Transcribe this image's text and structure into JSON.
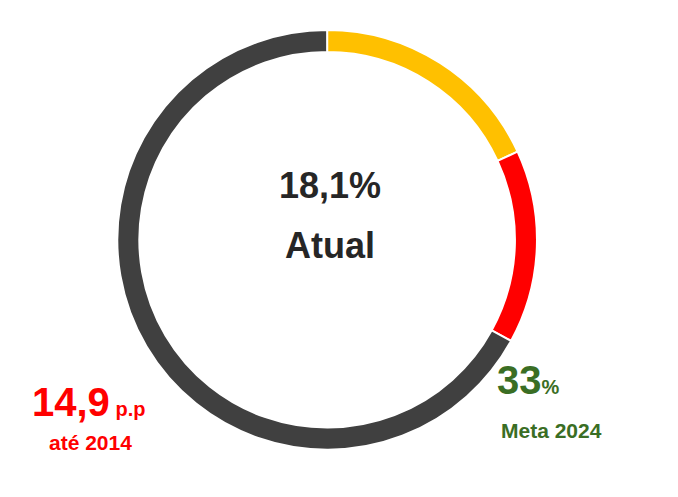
{
  "chart_data": {
    "type": "pie",
    "values": [
      18.1,
      14.9,
      67
    ],
    "colors": [
      "#FFC000",
      "#FF0000",
      "#404040"
    ],
    "data_labels": false,
    "annotations": [
      {
        "text": "18,1%",
        "color": "#262626"
      },
      {
        "text": "Atual",
        "color": "#262626"
      },
      {
        "text": "14,9 p.p",
        "color": "#FF0000"
      },
      {
        "text": "até 2014",
        "color": "#FF0000"
      },
      {
        "text": "33%",
        "color": "#3A6E24"
      },
      {
        "text": "Meta 2024",
        "color": "#3A6E24"
      }
    ]
  }
}
